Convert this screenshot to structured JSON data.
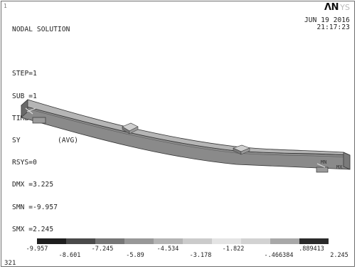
{
  "window": {
    "number": "1",
    "footer_number": "321"
  },
  "logo": {
    "text": "ΛN",
    "tail": "YS"
  },
  "header": {
    "date": "JUN 19 2016",
    "time": "21:17:23"
  },
  "solution_info": [
    "NODAL SOLUTION",
    "",
    "STEP=1",
    "SUB =1",
    "TIME=1",
    "SY         (AVG)",
    "RSYS=0",
    "DMX =3.225",
    "SMN =-9.957",
    "SMX =2.245"
  ],
  "markers": {
    "min": "MN",
    "max": "MX"
  },
  "legend": {
    "colors": [
      "#1e1e1e",
      "#4a4a4a",
      "#767676",
      "#989898",
      "#b4b4b4",
      "#cbcbcb",
      "#e4e4e4",
      "#d2d2d2",
      "#a8a8a8",
      "#2a2a2a"
    ],
    "labels_top": [
      "-9.957",
      "-7.245",
      "-4.534",
      "-1.822",
      ".889413"
    ],
    "labels_bottom": [
      "-8.601",
      "-5.89",
      "-3.178",
      "-.466384",
      "2.245"
    ]
  }
}
